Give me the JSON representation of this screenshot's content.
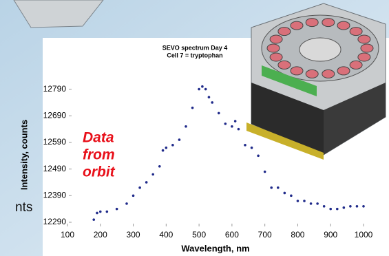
{
  "chart_data": {
    "type": "scatter",
    "title": "SEVO spectrum Day 4",
    "subtitle": "Cell 7 = tryptophan",
    "x_label": "Wavelength, nm",
    "y_label": "Intensity, counts",
    "annotation_lines": [
      "Data",
      "from",
      "orbit"
    ],
    "color": "#1f2a8a",
    "x": [
      180,
      190,
      200,
      220,
      250,
      280,
      300,
      320,
      340,
      360,
      380,
      390,
      400,
      420,
      440,
      460,
      480,
      500,
      510,
      520,
      530,
      540,
      560,
      580,
      600,
      610,
      620,
      640,
      660,
      680,
      700,
      720,
      740,
      760,
      780,
      800,
      820,
      840,
      860,
      880,
      900,
      920,
      940,
      960,
      980,
      1000
    ],
    "values": [
      12300,
      12325,
      12330,
      12330,
      12340,
      12360,
      12390,
      12420,
      12440,
      12470,
      12500,
      12560,
      12570,
      12580,
      12600,
      12650,
      12720,
      12790,
      12800,
      12790,
      12760,
      12740,
      12700,
      12660,
      12650,
      12670,
      12640,
      12580,
      12570,
      12540,
      12480,
      12420,
      12420,
      12400,
      12390,
      12370,
      12370,
      12360,
      12360,
      12350,
      12340,
      12340,
      12345,
      12350,
      12350,
      12350
    ],
    "xlim": [
      100,
      1000
    ],
    "ylim": [
      12290,
      12820
    ],
    "xticks": [
      100,
      200,
      300,
      400,
      500,
      600,
      700,
      800,
      900,
      1000
    ],
    "yticks": [
      12290,
      12390,
      12490,
      12590,
      12690,
      12790
    ]
  },
  "slide": {
    "partial_text": "nts"
  }
}
